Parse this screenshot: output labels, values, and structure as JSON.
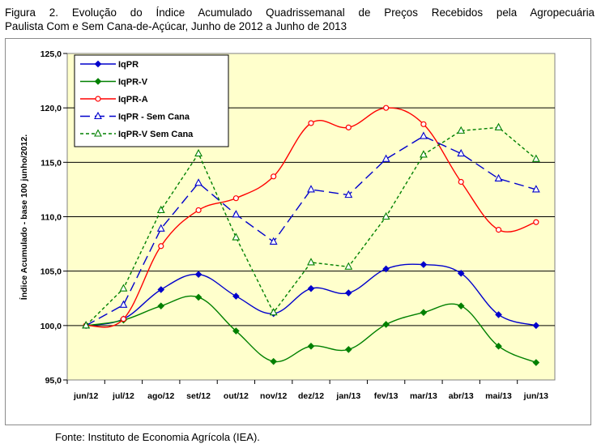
{
  "figure": {
    "title_line1": "Figura 2. Evolução do Índice Acumulado Quadrissemanal de Preços Recebidos pela Agropecuária",
    "title_line2": "Paulista Com e Sem Cana-de-Açúcar, Junho de 2012 a Junho de 2013",
    "source": "Fonte: Instituto de Economia Agrícola (IEA)."
  },
  "colors": {
    "plot_bg": "#ffffcc",
    "blue": "#0000cc",
    "green": "#008000",
    "red": "#ff0000",
    "grid": "#000000"
  },
  "chart_data": {
    "type": "line",
    "title": "",
    "xlabel": "",
    "ylabel": "Índice Acumulado - base 100 junho/2012.",
    "ylim": [
      95,
      125
    ],
    "y_ticks": [
      "95,0",
      "100,0",
      "105,0",
      "110,0",
      "115,0",
      "120,0",
      "125,0"
    ],
    "grid": "horizontal",
    "legend_position": "top-left",
    "categories": [
      "jun/12",
      "jul/12",
      "ago/12",
      "set/12",
      "out/12",
      "nov/12",
      "dez/12",
      "jan/13",
      "fev/13",
      "mar/13",
      "abr/13",
      "mai/13",
      "jun/13"
    ],
    "series": [
      {
        "name": "IqPR",
        "color": "#0000cc",
        "dash": "solid",
        "marker": "diamond",
        "values": [
          100.0,
          100.6,
          103.3,
          104.7,
          102.7,
          101.1,
          103.4,
          103.0,
          105.2,
          105.6,
          104.8,
          101.0,
          100.0
        ]
      },
      {
        "name": "IqPR-V",
        "color": "#008000",
        "dash": "solid",
        "marker": "diamond",
        "values": [
          100.0,
          100.5,
          101.8,
          102.6,
          99.5,
          96.7,
          98.1,
          97.8,
          100.1,
          101.2,
          101.8,
          98.1,
          96.6
        ]
      },
      {
        "name": "IqPR-A",
        "color": "#ff0000",
        "dash": "solid",
        "marker": "circle",
        "values": [
          100.0,
          100.6,
          107.3,
          110.6,
          111.7,
          113.7,
          118.6,
          118.2,
          120.0,
          118.5,
          113.2,
          108.8,
          109.5
        ]
      },
      {
        "name": "IqPR - Sem Cana",
        "color": "#0000cc",
        "dash": "long",
        "marker": "triangle",
        "values": [
          100.0,
          101.9,
          108.9,
          113.1,
          110.2,
          107.7,
          112.5,
          112.0,
          115.3,
          117.4,
          115.8,
          113.5,
          112.5
        ]
      },
      {
        "name": "IqPR-V Sem Cana",
        "color": "#008000",
        "dash": "short",
        "marker": "triangle",
        "values": [
          100.0,
          103.4,
          110.6,
          115.8,
          108.1,
          101.2,
          105.8,
          105.4,
          110.0,
          115.7,
          117.9,
          118.2,
          115.3
        ]
      }
    ]
  }
}
